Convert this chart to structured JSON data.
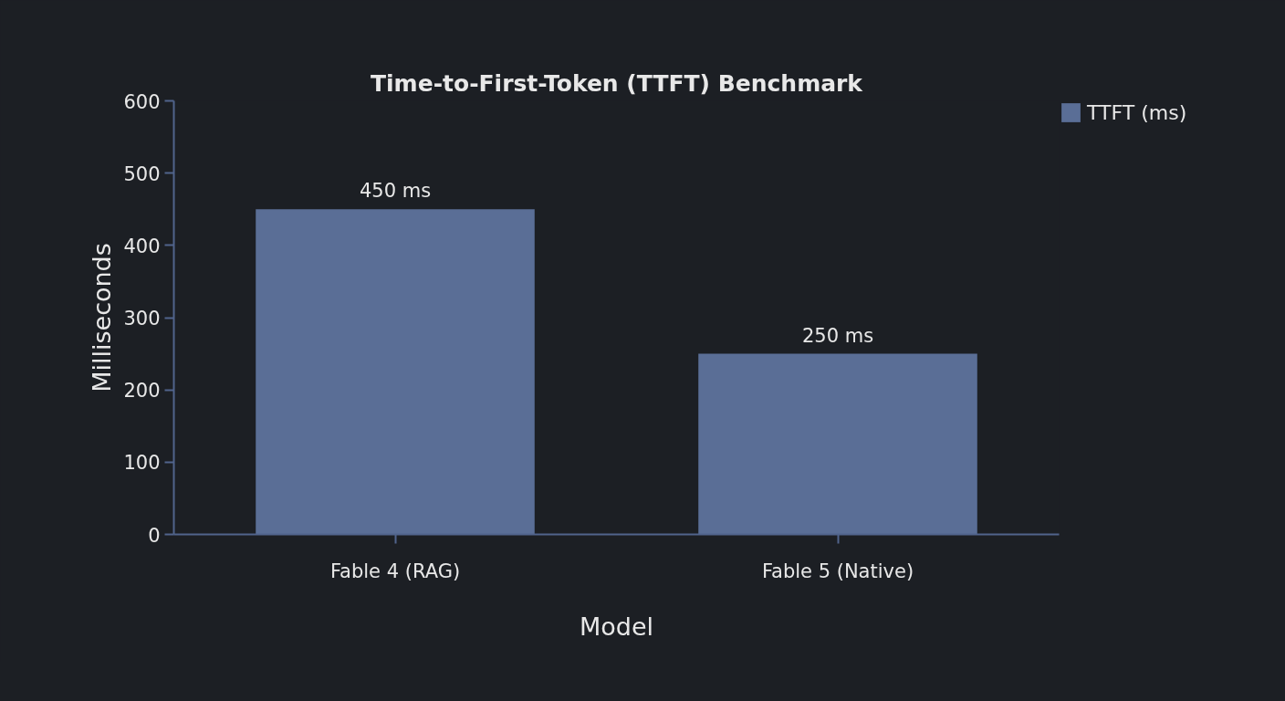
{
  "chart_data": {
    "type": "bar",
    "title": "Time-to-First-Token (TTFT) Benchmark",
    "xlabel": "Model",
    "ylabel": "Milliseconds",
    "categories": [
      "Fable 4 (RAG)",
      "Fable 5 (Native)"
    ],
    "series": [
      {
        "name": "TTFT (ms)",
        "color": "#5a6e96",
        "values": [
          450,
          250
        ],
        "value_labels": [
          "450 ms",
          "250 ms"
        ]
      }
    ],
    "ylim": [
      0,
      600
    ],
    "yticks": [
      0,
      100,
      200,
      300,
      400,
      500,
      600
    ],
    "grid": false,
    "legend": "top right"
  }
}
